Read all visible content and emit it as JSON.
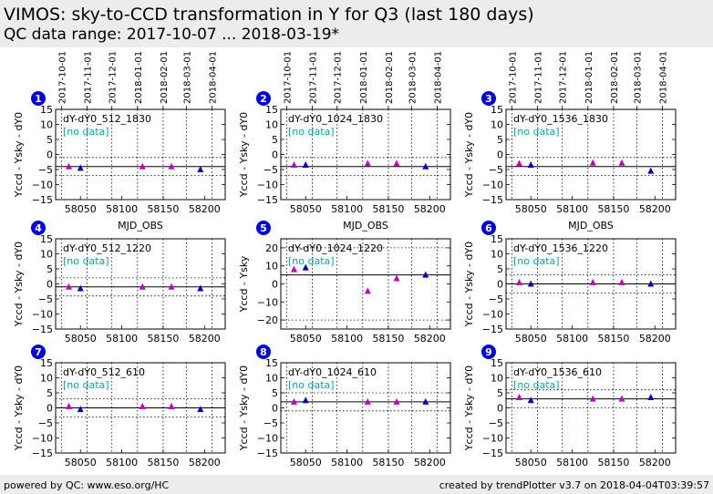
{
  "header": {
    "title": "VIMOS: sky-to-CCD transformation in Y for Q3 (last 180 days)",
    "subtitle": "QC data range: 2017-10-07 ... 2018-03-19*"
  },
  "footer": {
    "left": "powered by QC: www.eso.org/HC",
    "right": "created by trendPlotter v3.7 on 2018-04-04T03:39:57"
  },
  "colors": {
    "magenta_marker": "#c000c0",
    "blue_marker": "#0000c0",
    "badge": "#0000dd",
    "no_data_text": "#00aaaa"
  },
  "top_date_ticks": [
    "2017-10-01",
    "2017-11-01",
    "2017-12-01",
    "2018-01-01",
    "2018-02-01",
    "2018-03-01",
    "2018-04-01"
  ],
  "chart_data": [
    {
      "type": "scatter",
      "panel": 1,
      "label": "dY-dY0_512_1830",
      "note": "[no data]",
      "ylabel": "Yccd - Ysky - dY0",
      "xlabel": "MJD_OBS",
      "xlim": [
        58020,
        58225
      ],
      "ylim": [
        -15,
        15
      ],
      "yticks": [
        -15,
        -10,
        -5,
        0,
        5,
        10,
        15
      ],
      "xticks": [
        58050,
        58100,
        58150,
        58200
      ],
      "hline": -4,
      "dotted": [
        -1,
        -7
      ],
      "top_axis": true,
      "points": [
        {
          "x": 58036,
          "y": -4,
          "c": "m"
        },
        {
          "x": 58050,
          "y": -4.5,
          "c": "b"
        },
        {
          "x": 58125,
          "y": -4,
          "c": "m"
        },
        {
          "x": 58160,
          "y": -4,
          "c": "m"
        },
        {
          "x": 58195,
          "y": -5,
          "c": "b"
        }
      ]
    },
    {
      "type": "scatter",
      "panel": 2,
      "label": "dY-dY0_1024_1830",
      "note": "[no data]",
      "ylabel": "Yccd - Ysky - dY0",
      "xlabel": "MJD_OBS",
      "xlim": [
        58020,
        58225
      ],
      "ylim": [
        -15,
        15
      ],
      "yticks": [
        -15,
        -10,
        -5,
        0,
        5,
        10,
        15
      ],
      "xticks": [
        58050,
        58100,
        58150,
        58200
      ],
      "hline": -4,
      "dotted": [
        -1,
        -7
      ],
      "top_axis": true,
      "points": [
        {
          "x": 58036,
          "y": -3.5,
          "c": "m"
        },
        {
          "x": 58050,
          "y": -3.5,
          "c": "b"
        },
        {
          "x": 58125,
          "y": -3,
          "c": "m"
        },
        {
          "x": 58160,
          "y": -3,
          "c": "m"
        },
        {
          "x": 58195,
          "y": -4,
          "c": "b"
        }
      ]
    },
    {
      "type": "scatter",
      "panel": 3,
      "label": "dY-dY0_1536_1830",
      "note": "[no data]",
      "ylabel": "Yccd - Ysky - dY0",
      "xlabel": "MJD_OBS",
      "xlim": [
        58020,
        58225
      ],
      "ylim": [
        -15,
        15
      ],
      "yticks": [
        -15,
        -10,
        -5,
        0,
        5,
        10,
        15
      ],
      "xticks": [
        58050,
        58100,
        58150,
        58200
      ],
      "hline": -4,
      "dotted": [
        -1,
        -7
      ],
      "top_axis": true,
      "points": [
        {
          "x": 58036,
          "y": -3,
          "c": "m"
        },
        {
          "x": 58050,
          "y": -3.5,
          "c": "b"
        },
        {
          "x": 58125,
          "y": -2.8,
          "c": "m"
        },
        {
          "x": 58160,
          "y": -2.8,
          "c": "m"
        },
        {
          "x": 58195,
          "y": -5.5,
          "c": "b"
        }
      ]
    },
    {
      "type": "scatter",
      "panel": 4,
      "label": "dY-dY0_512_1220",
      "note": "[no data]",
      "ylabel": "Yccd - Ysky - dY0",
      "xlabel": "",
      "xlim": [
        58020,
        58225
      ],
      "ylim": [
        -15,
        15
      ],
      "yticks": [
        -15,
        -10,
        -5,
        0,
        5,
        10,
        15
      ],
      "xticks": [
        58050,
        58100,
        58150,
        58200
      ],
      "hline": -1,
      "dotted": [
        2,
        -4
      ],
      "top_axis": false,
      "points": [
        {
          "x": 58036,
          "y": -1,
          "c": "m"
        },
        {
          "x": 58050,
          "y": -1.5,
          "c": "b"
        },
        {
          "x": 58125,
          "y": -1,
          "c": "m"
        },
        {
          "x": 58160,
          "y": -1,
          "c": "m"
        },
        {
          "x": 58195,
          "y": -1.5,
          "c": "b"
        }
      ]
    },
    {
      "type": "scatter",
      "panel": 5,
      "label": "dY-dY0_1024_1220",
      "note": "[no data]",
      "ylabel": "Yccd - Ysky",
      "xlabel": "",
      "xlim": [
        58020,
        58225
      ],
      "ylim": [
        -25,
        25
      ],
      "yticks": [
        -20,
        -10,
        0,
        10,
        20
      ],
      "xticks": [
        58050,
        58100,
        58150,
        58200
      ],
      "hline": 5,
      "dotted": [
        20,
        -20
      ],
      "top_axis": false,
      "points": [
        {
          "x": 58036,
          "y": 8,
          "c": "m"
        },
        {
          "x": 58050,
          "y": 9,
          "c": "b"
        },
        {
          "x": 58125,
          "y": -4,
          "c": "m"
        },
        {
          "x": 58160,
          "y": 3,
          "c": "m"
        },
        {
          "x": 58195,
          "y": 5,
          "c": "b"
        }
      ]
    },
    {
      "type": "scatter",
      "panel": 6,
      "label": "dY-dY0_1536_1220",
      "note": "[no data]",
      "ylabel": "Yccd - Ysky - dY0",
      "xlabel": "",
      "xlim": [
        58020,
        58225
      ],
      "ylim": [
        -15,
        15
      ],
      "yticks": [
        -15,
        -10,
        -5,
        0,
        5,
        10,
        15
      ],
      "xticks": [
        58050,
        58100,
        58150,
        58200
      ],
      "hline": 0,
      "dotted": [
        3,
        -3
      ],
      "top_axis": false,
      "points": [
        {
          "x": 58036,
          "y": 0.5,
          "c": "m"
        },
        {
          "x": 58050,
          "y": 0,
          "c": "b"
        },
        {
          "x": 58125,
          "y": 0.5,
          "c": "m"
        },
        {
          "x": 58160,
          "y": 0.5,
          "c": "m"
        },
        {
          "x": 58195,
          "y": 0,
          "c": "b"
        }
      ]
    },
    {
      "type": "scatter",
      "panel": 7,
      "label": "dY-dY0_512_610",
      "note": "[no data]",
      "ylabel": "Yccd - Ysky - dY0",
      "xlabel": "",
      "xlim": [
        58020,
        58225
      ],
      "ylim": [
        -15,
        15
      ],
      "yticks": [
        -15,
        -10,
        -5,
        0,
        5,
        10,
        15
      ],
      "xticks": [
        58050,
        58100,
        58150,
        58200
      ],
      "hline": 0,
      "dotted": [
        3,
        -3
      ],
      "top_axis": false,
      "points": [
        {
          "x": 58036,
          "y": 0.5,
          "c": "m"
        },
        {
          "x": 58050,
          "y": -0.5,
          "c": "b"
        },
        {
          "x": 58125,
          "y": 0.5,
          "c": "m"
        },
        {
          "x": 58160,
          "y": 0.5,
          "c": "m"
        },
        {
          "x": 58195,
          "y": -0.5,
          "c": "b"
        }
      ]
    },
    {
      "type": "scatter",
      "panel": 8,
      "label": "dY-dY0_1024_610",
      "note": "[no data]",
      "ylabel": "Yccd - Ysky - dY0",
      "xlabel": "",
      "xlim": [
        58020,
        58225
      ],
      "ylim": [
        -15,
        15
      ],
      "yticks": [
        -15,
        -10,
        -5,
        0,
        5,
        10,
        15
      ],
      "xticks": [
        58050,
        58100,
        58150,
        58200
      ],
      "hline": 2,
      "dotted": [
        5,
        -1
      ],
      "top_axis": false,
      "points": [
        {
          "x": 58036,
          "y": 2,
          "c": "m"
        },
        {
          "x": 58050,
          "y": 2.5,
          "c": "b"
        },
        {
          "x": 58125,
          "y": 2,
          "c": "m"
        },
        {
          "x": 58160,
          "y": 2,
          "c": "m"
        },
        {
          "x": 58195,
          "y": 2,
          "c": "b"
        }
      ]
    },
    {
      "type": "scatter",
      "panel": 9,
      "label": "dY-dY0_1536_610",
      "note": "[no data]",
      "ylabel": "Yccd - Ysky - dY0",
      "xlabel": "",
      "xlim": [
        58020,
        58225
      ],
      "ylim": [
        -15,
        15
      ],
      "yticks": [
        -15,
        -10,
        -5,
        0,
        5,
        10,
        15
      ],
      "xticks": [
        58050,
        58100,
        58150,
        58200
      ],
      "hline": 3,
      "dotted": [
        6,
        0
      ],
      "top_axis": false,
      "points": [
        {
          "x": 58036,
          "y": 3.5,
          "c": "m"
        },
        {
          "x": 58050,
          "y": 2.5,
          "c": "b"
        },
        {
          "x": 58125,
          "y": 3,
          "c": "m"
        },
        {
          "x": 58160,
          "y": 3,
          "c": "m"
        },
        {
          "x": 58195,
          "y": 3.5,
          "c": "b"
        }
      ]
    }
  ]
}
